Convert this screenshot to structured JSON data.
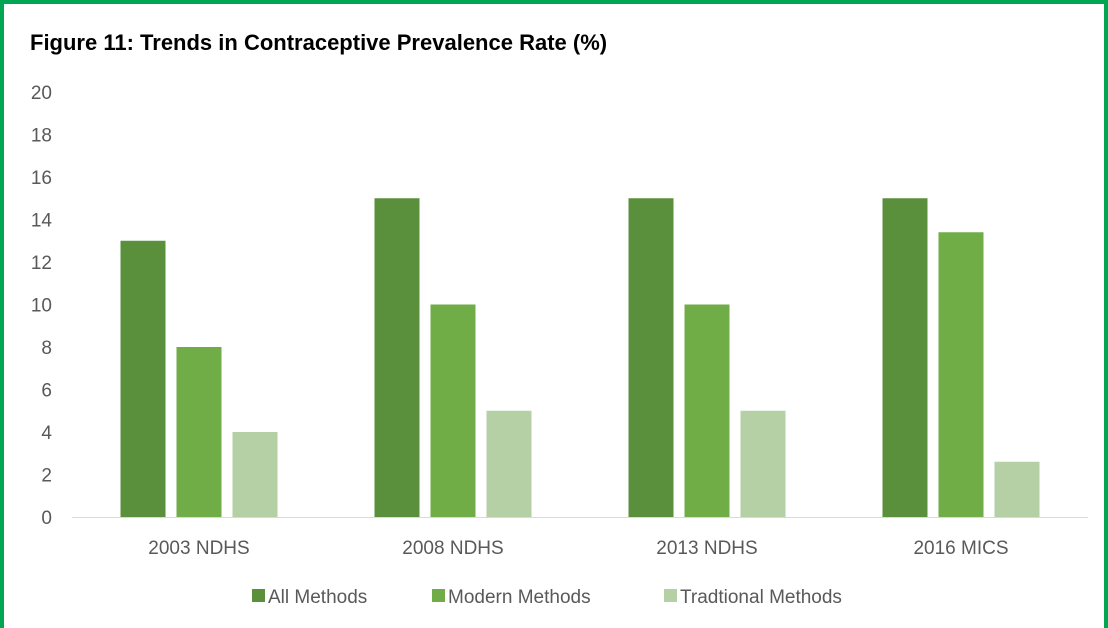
{
  "chart_data": {
    "type": "bar",
    "title": "Figure 11: Trends in Contraceptive Prevalence Rate (%)",
    "categories": [
      "2003 NDHS",
      "2008 NDHS",
      "2013 NDHS",
      "2016 MICS"
    ],
    "series": [
      {
        "name": "All Methods",
        "color": "#5a8f3c",
        "values": [
          13,
          15,
          15,
          15
        ]
      },
      {
        "name": "Modern Methods",
        "color": "#70ad47",
        "values": [
          8,
          10,
          10,
          13.4
        ]
      },
      {
        "name": "Tradtional Methods",
        "color": "#b5d0a5",
        "values": [
          4,
          5,
          5,
          2.6
        ]
      }
    ],
    "yticks": [
      0,
      2,
      4,
      6,
      8,
      10,
      12,
      14,
      16,
      18,
      20
    ],
    "ylim": [
      0,
      20
    ],
    "grid": false,
    "legend": "bottom"
  },
  "frame_color": "#00a651"
}
